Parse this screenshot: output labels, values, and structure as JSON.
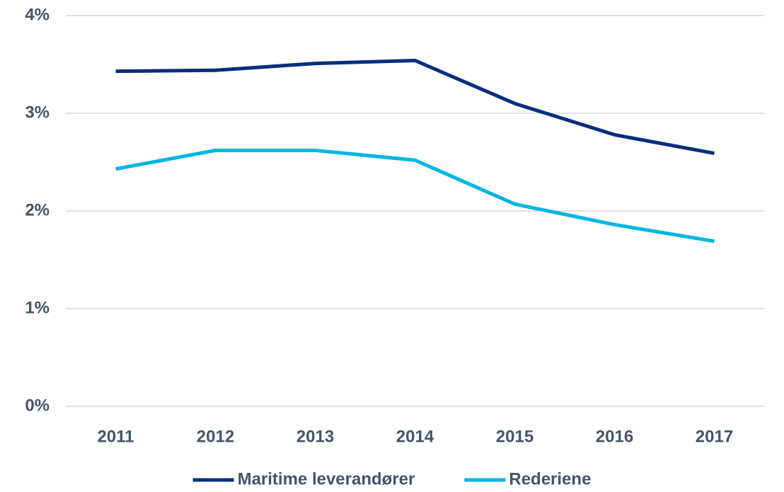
{
  "chart_data": {
    "type": "line",
    "categories": [
      "2011",
      "2012",
      "2013",
      "2014",
      "2015",
      "2016",
      "2017"
    ],
    "series": [
      {
        "name": "Maritime leverandører",
        "color": "#0a2d7e",
        "values": [
          3.43,
          3.44,
          3.51,
          3.54,
          3.1,
          2.78,
          2.59
        ]
      },
      {
        "name": "Rederiene",
        "color": "#00b5e2",
        "values": [
          2.43,
          2.62,
          2.62,
          2.52,
          2.07,
          1.86,
          1.69
        ]
      }
    ],
    "ylim": [
      0,
      4
    ],
    "yticks": [
      {
        "value": 0,
        "label": "0%"
      },
      {
        "value": 1,
        "label": "1%"
      },
      {
        "value": 2,
        "label": "2%"
      },
      {
        "value": 3,
        "label": "3%"
      },
      {
        "value": 4,
        "label": "4%"
      }
    ],
    "grid": true,
    "legend": "bottom"
  }
}
